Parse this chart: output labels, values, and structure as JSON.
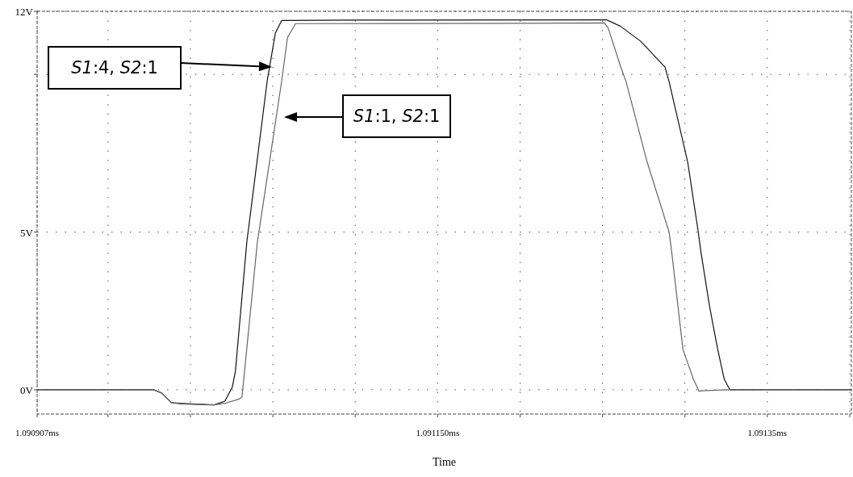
{
  "chart_data": {
    "type": "line",
    "xlabel": "Time",
    "xlim": [
      1.090907,
      1.091401
    ],
    "ylim": [
      -0.77,
      12
    ],
    "xticks": [
      {
        "value": 1.090907,
        "label": "1.090907ms"
      },
      {
        "value": 1.09095,
        "label": null
      },
      {
        "value": 1.091,
        "label": null
      },
      {
        "value": 1.09105,
        "label": null
      },
      {
        "value": 1.0911,
        "label": null
      },
      {
        "value": 1.09115,
        "label": "1.091150ms"
      },
      {
        "value": 1.0912,
        "label": null
      },
      {
        "value": 1.09125,
        "label": null
      },
      {
        "value": 1.0913,
        "label": null
      },
      {
        "value": 1.09135,
        "label": "1.09135ms"
      },
      {
        "value": 1.0914,
        "label": null
      }
    ],
    "yticks": [
      {
        "value": 0,
        "label": "0V"
      },
      {
        "value": 5,
        "label": "5V"
      },
      {
        "value": 10,
        "label": null
      },
      {
        "value": 12,
        "label": "12V"
      }
    ],
    "grid": true,
    "line_style": "solid",
    "marker": "none",
    "series": [
      {
        "color": "#111111",
        "x": [
          1.090907,
          1.0909776,
          1.0909825,
          1.0909884,
          1.0909948,
          1.0910145,
          1.0910209,
          1.0910254,
          1.0910273,
          1.0910342,
          1.0910466,
          1.0910515,
          1.0910554,
          1.0911,
          1.0912525,
          1.0912608,
          1.0912732,
          1.0912879,
          1.0912904,
          1.0913017,
          1.0913081,
          1.0913096,
          1.091315,
          1.0913199,
          1.0913239,
          1.0913273,
          1.091401
        ],
        "values": [
          0,
          0,
          -0.1,
          -0.41,
          -0.45,
          -0.48,
          -0.36,
          0.08,
          0.59,
          4.67,
          9.8,
          11.3,
          11.71,
          11.72,
          11.73,
          11.53,
          11.05,
          10.23,
          9.77,
          7.22,
          5.0,
          4.41,
          2.63,
          1.28,
          0.33,
          0,
          0
        ]
      },
      {
        "color": "#666666",
        "x": [
          1.090907,
          1.0909776,
          1.0909825,
          1.0909884,
          1.0910145,
          1.0910209,
          1.0910293,
          1.0910313,
          1.0910357,
          1.0910406,
          1.0910554,
          1.0910589,
          1.0910638,
          1.0912,
          1.091251,
          1.0912534,
          1.0912608,
          1.0912643,
          1.0912771,
          1.0912904,
          1.0912919,
          1.0912988,
          1.0913052,
          1.0913086,
          1.0913101,
          1.0913273,
          1.091401
        ],
        "values": [
          0,
          0,
          -0.1,
          -0.41,
          -0.48,
          -0.43,
          -0.3,
          -0.23,
          2.1,
          4.67,
          9.8,
          11.17,
          11.61,
          11.62,
          11.63,
          11.48,
          10.28,
          9.77,
          7.22,
          5.0,
          4.41,
          1.28,
          0.33,
          -0.05,
          -0.03,
          0,
          0
        ]
      }
    ],
    "annotations": [
      "S1:4, S2:1",
      "S1:1, S2:1"
    ]
  }
}
